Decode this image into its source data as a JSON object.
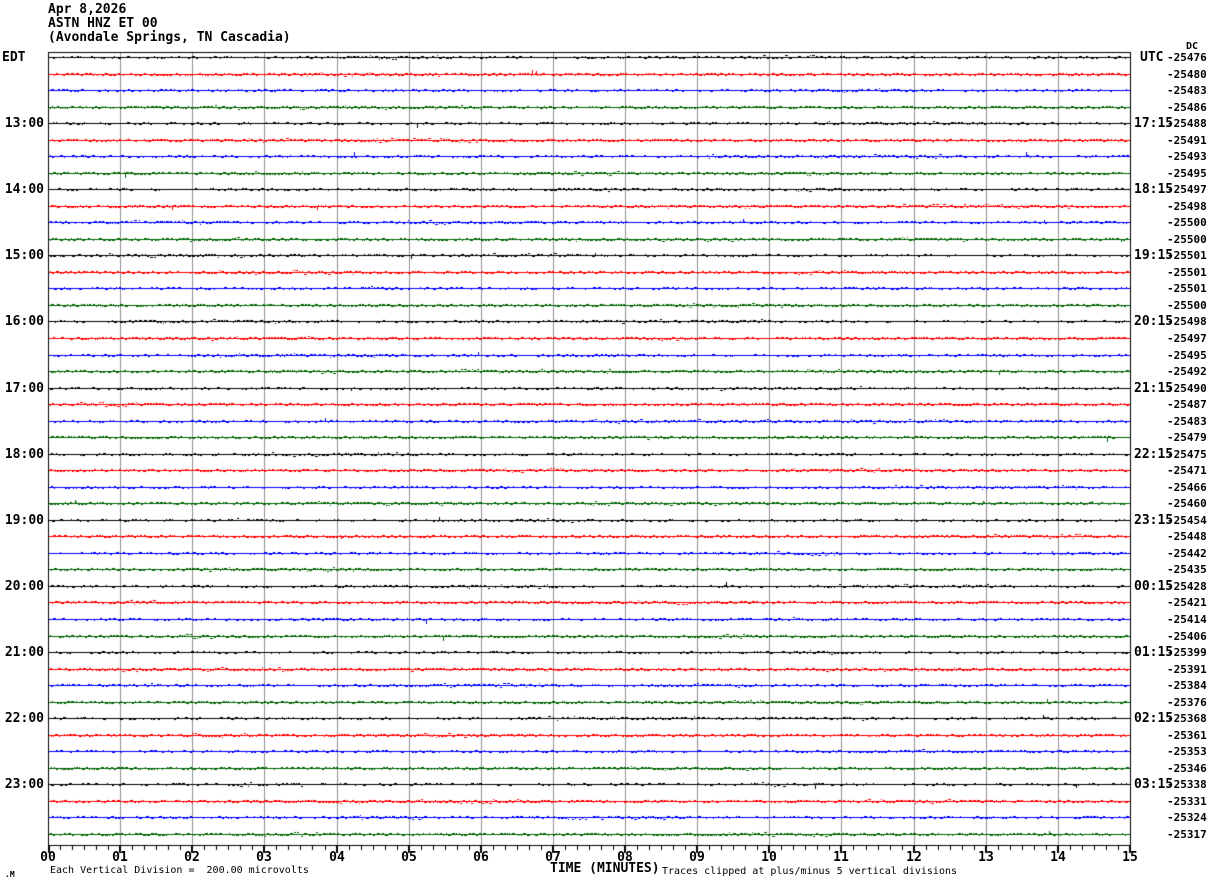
{
  "title": {
    "date": "Apr 8,2026",
    "station": "ASTN HNZ ET 00",
    "location": "(Avondale Springs, TN Cascadia)"
  },
  "axes": {
    "left_header": "EDT",
    "right_header": "UTC",
    "dc_header": "DC",
    "x_label": "TIME (MINUTES)",
    "x_ticks": [
      "00",
      "01",
      "02",
      "03",
      "04",
      "05",
      "06",
      "07",
      "08",
      "09",
      "10",
      "11",
      "12",
      "13",
      "14",
      "15"
    ]
  },
  "footer": {
    "corner_mark": ".M",
    "scale_note": "Each Vertical Division =  200.00 microvolts",
    "clip_note": "Traces clipped at plus/minus 5 vertical divisions"
  },
  "colors": {
    "black": "#000000",
    "red": "#ff0000",
    "blue": "#0000ff",
    "green": "#006400",
    "grid": "#909090",
    "frame": "#000000",
    "background": "#ffffff"
  },
  "chart_data": {
    "type": "line",
    "subtype": "helicorder-seismogram",
    "title": "Apr 8,2026 ASTN HNZ ET 00 (Avondale Springs, TN Cascadia)",
    "xlabel": "TIME (MINUTES)",
    "x_range": [
      0,
      15
    ],
    "minor_ticks_per_minute": 6,
    "minutes_per_row": 15,
    "rows_count": 48,
    "left_time_zone": "EDT",
    "right_time_zone": "UTC",
    "trace_color_cycle": [
      "black",
      "red",
      "blue",
      "green"
    ],
    "description": "48 near-flat noise traces, 15 minutes each, clipped at ±5 vertical divisions; each vertical division = 200.00 microvolts; DC offset listed per trace",
    "rows": [
      {
        "edt_label": "",
        "utc_label": "",
        "dc": "-25476",
        "color": "black"
      },
      {
        "edt_label": "",
        "utc_label": "",
        "dc": "-25480",
        "color": "red"
      },
      {
        "edt_label": "",
        "utc_label": "",
        "dc": "-25483",
        "color": "blue"
      },
      {
        "edt_label": "",
        "utc_label": "",
        "dc": "-25486",
        "color": "green"
      },
      {
        "edt_label": "13:00",
        "utc_label": "17:15",
        "dc": "-25488",
        "color": "black"
      },
      {
        "edt_label": "",
        "utc_label": "",
        "dc": "-25491",
        "color": "red"
      },
      {
        "edt_label": "",
        "utc_label": "",
        "dc": "-25493",
        "color": "blue"
      },
      {
        "edt_label": "",
        "utc_label": "",
        "dc": "-25495",
        "color": "green"
      },
      {
        "edt_label": "14:00",
        "utc_label": "18:15",
        "dc": "-25497",
        "color": "black"
      },
      {
        "edt_label": "",
        "utc_label": "",
        "dc": "-25498",
        "color": "red"
      },
      {
        "edt_label": "",
        "utc_label": "",
        "dc": "-25500",
        "color": "blue"
      },
      {
        "edt_label": "",
        "utc_label": "",
        "dc": "-25500",
        "color": "green"
      },
      {
        "edt_label": "15:00",
        "utc_label": "19:15",
        "dc": "-25501",
        "color": "black"
      },
      {
        "edt_label": "",
        "utc_label": "",
        "dc": "-25501",
        "color": "red"
      },
      {
        "edt_label": "",
        "utc_label": "",
        "dc": "-25501",
        "color": "blue"
      },
      {
        "edt_label": "",
        "utc_label": "",
        "dc": "-25500",
        "color": "green"
      },
      {
        "edt_label": "16:00",
        "utc_label": "20:15",
        "dc": "-25498",
        "color": "black"
      },
      {
        "edt_label": "",
        "utc_label": "",
        "dc": "-25497",
        "color": "red"
      },
      {
        "edt_label": "",
        "utc_label": "",
        "dc": "-25495",
        "color": "blue"
      },
      {
        "edt_label": "",
        "utc_label": "",
        "dc": "-25492",
        "color": "green"
      },
      {
        "edt_label": "17:00",
        "utc_label": "21:15",
        "dc": "-25490",
        "color": "black"
      },
      {
        "edt_label": "",
        "utc_label": "",
        "dc": "-25487",
        "color": "red"
      },
      {
        "edt_label": "",
        "utc_label": "",
        "dc": "-25483",
        "color": "blue"
      },
      {
        "edt_label": "",
        "utc_label": "",
        "dc": "-25479",
        "color": "green"
      },
      {
        "edt_label": "18:00",
        "utc_label": "22:15",
        "dc": "-25475",
        "color": "black"
      },
      {
        "edt_label": "",
        "utc_label": "",
        "dc": "-25471",
        "color": "red"
      },
      {
        "edt_label": "",
        "utc_label": "",
        "dc": "-25466",
        "color": "blue"
      },
      {
        "edt_label": "",
        "utc_label": "",
        "dc": "-25460",
        "color": "green"
      },
      {
        "edt_label": "19:00",
        "utc_label": "23:15",
        "dc": "-25454",
        "color": "black"
      },
      {
        "edt_label": "",
        "utc_label": "",
        "dc": "-25448",
        "color": "red"
      },
      {
        "edt_label": "",
        "utc_label": "",
        "dc": "-25442",
        "color": "blue"
      },
      {
        "edt_label": "",
        "utc_label": "",
        "dc": "-25435",
        "color": "green"
      },
      {
        "edt_label": "20:00",
        "utc_label": "00:15",
        "dc": "-25428",
        "color": "black"
      },
      {
        "edt_label": "",
        "utc_label": "",
        "dc": "-25421",
        "color": "red"
      },
      {
        "edt_label": "",
        "utc_label": "",
        "dc": "-25414",
        "color": "blue"
      },
      {
        "edt_label": "",
        "utc_label": "",
        "dc": "-25406",
        "color": "green"
      },
      {
        "edt_label": "21:00",
        "utc_label": "01:15",
        "dc": "-25399",
        "color": "black"
      },
      {
        "edt_label": "",
        "utc_label": "",
        "dc": "-25391",
        "color": "red"
      },
      {
        "edt_label": "",
        "utc_label": "",
        "dc": "-25384",
        "color": "blue"
      },
      {
        "edt_label": "",
        "utc_label": "",
        "dc": "-25376",
        "color": "green"
      },
      {
        "edt_label": "22:00",
        "utc_label": "02:15",
        "dc": "-25368",
        "color": "black"
      },
      {
        "edt_label": "",
        "utc_label": "",
        "dc": "-25361",
        "color": "red"
      },
      {
        "edt_label": "",
        "utc_label": "",
        "dc": "-25353",
        "color": "blue"
      },
      {
        "edt_label": "",
        "utc_label": "",
        "dc": "-25346",
        "color": "green"
      },
      {
        "edt_label": "23:00",
        "utc_label": "03:15",
        "dc": "-25338",
        "color": "black"
      },
      {
        "edt_label": "",
        "utc_label": "",
        "dc": "-25331",
        "color": "red"
      },
      {
        "edt_label": "",
        "utc_label": "",
        "dc": "-25324",
        "color": "blue"
      },
      {
        "edt_label": "",
        "utc_label": "",
        "dc": "-25317",
        "color": "green"
      }
    ]
  }
}
